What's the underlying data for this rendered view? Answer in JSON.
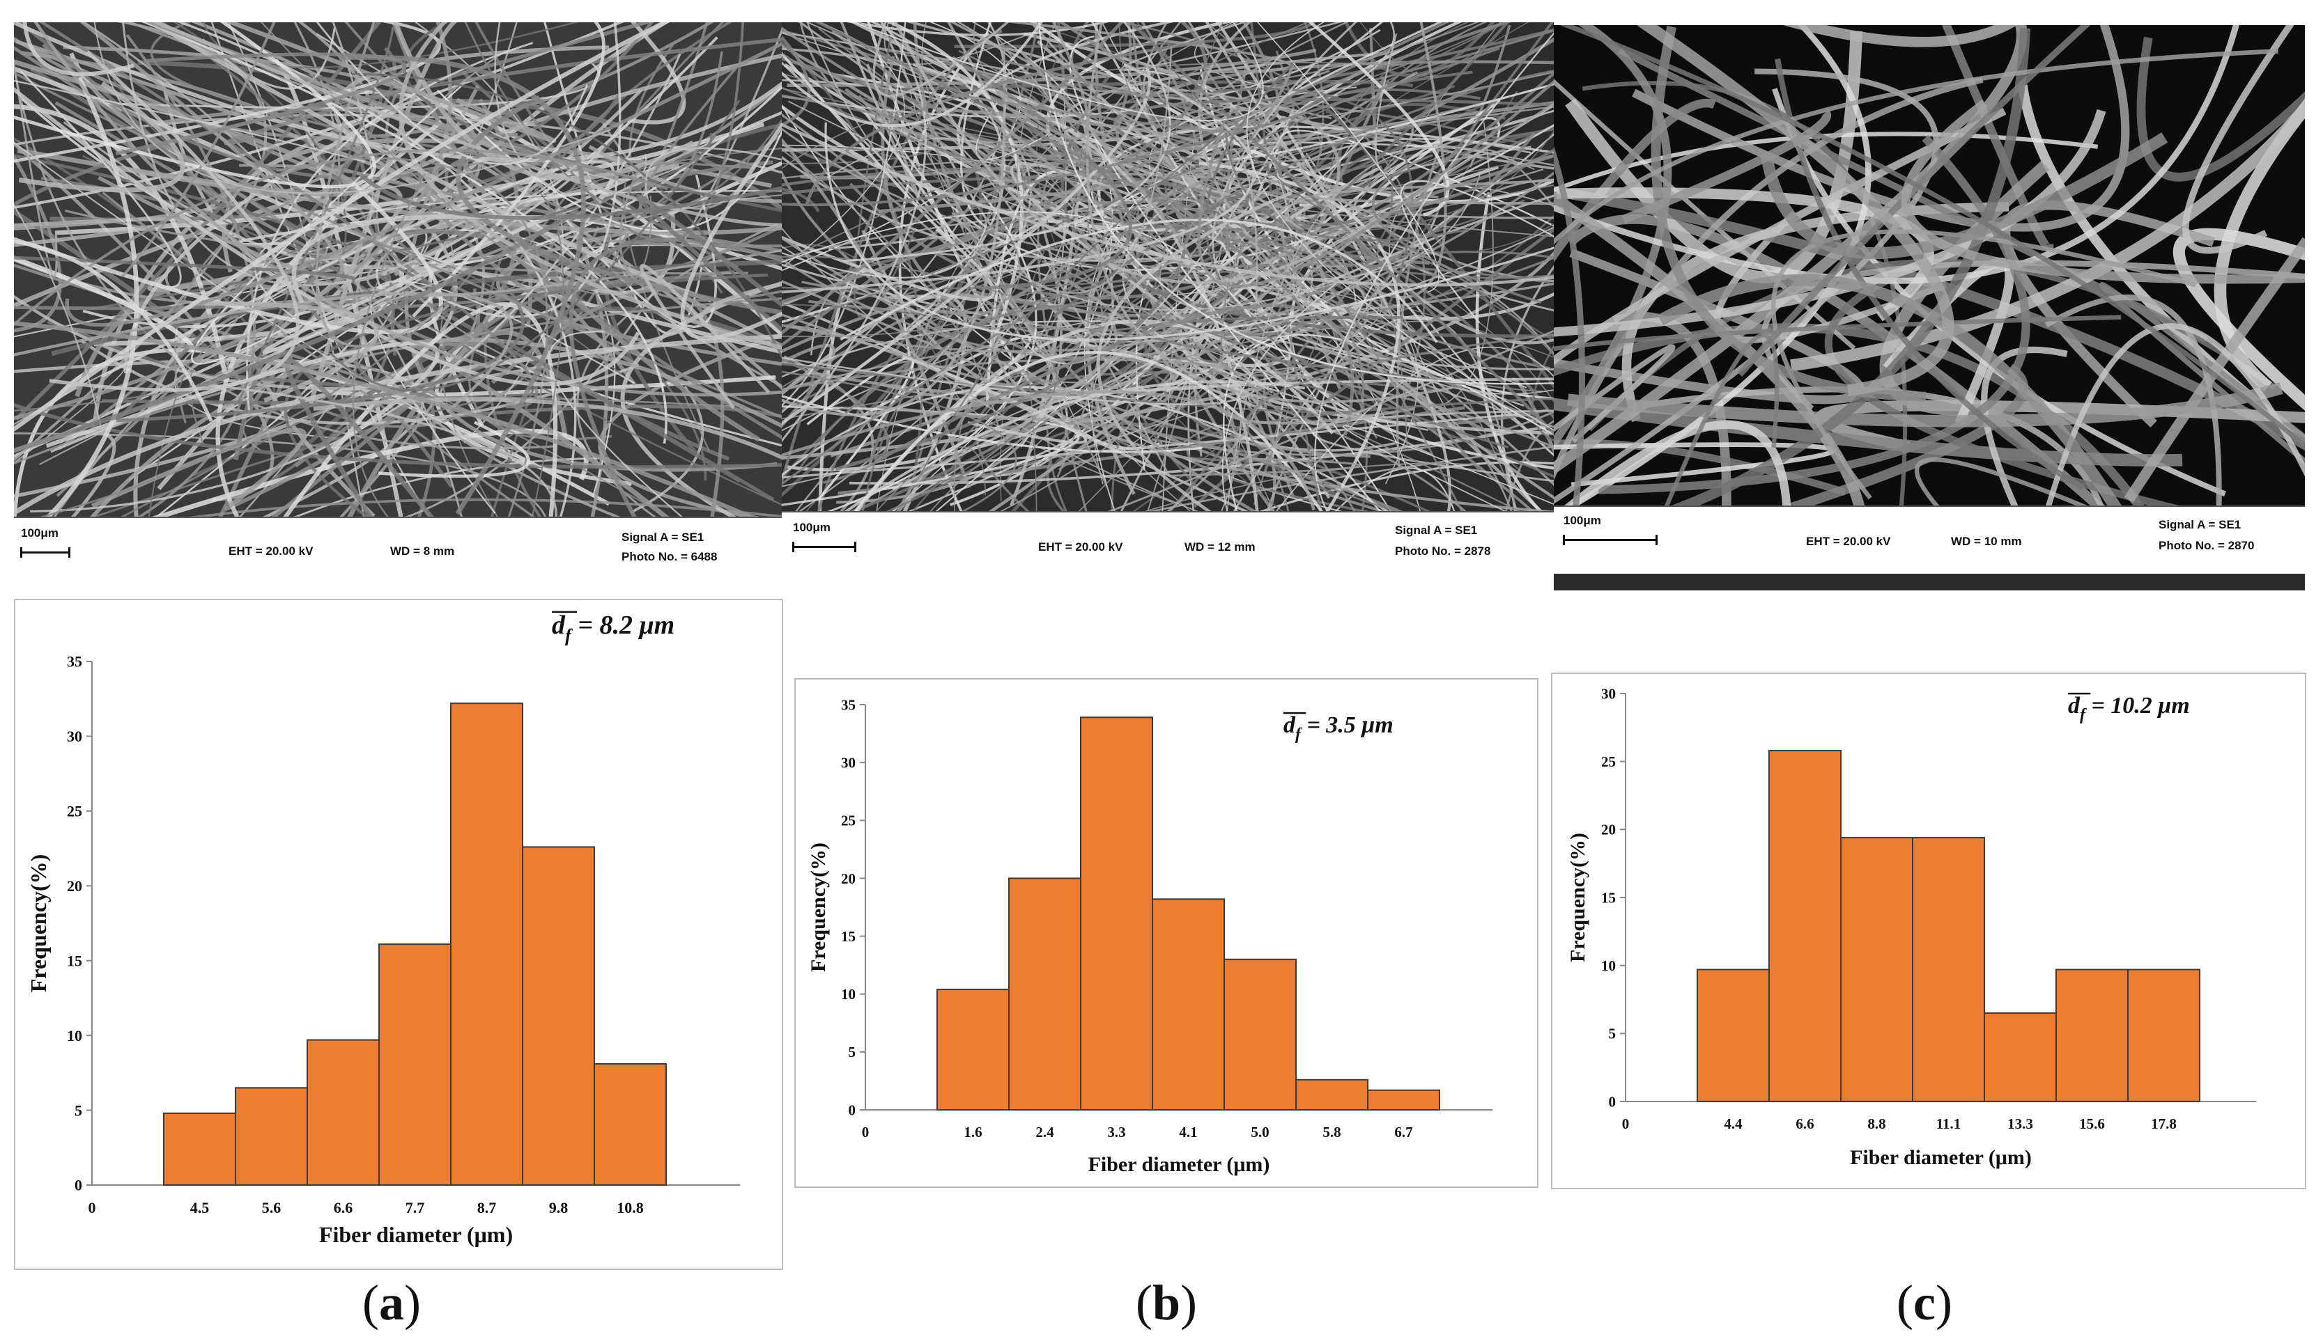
{
  "sem_images": [
    {
      "scale": "100μm",
      "eht": "EHT = 20.00 kV",
      "wd": "WD =   8 mm",
      "signal": "Signal A = SE1",
      "photo": "Photo No. = 6488"
    },
    {
      "scale": "100μm",
      "eht": "EHT = 20.00 kV",
      "wd": "WD =  12 mm",
      "signal": "Signal A = SE1",
      "photo": "Photo No. = 2878"
    },
    {
      "scale": "100μm",
      "eht": "EHT = 20.00 kV",
      "wd": "WD =   10 mm",
      "signal": "Signal A = SE1",
      "photo": "Photo No. = 2870"
    }
  ],
  "panel_labels": [
    {
      "open": "(",
      "letter": "a",
      "close": ")"
    },
    {
      "open": "(",
      "letter": "b",
      "close": ")"
    },
    {
      "open": "(",
      "letter": "c",
      "close": ")"
    }
  ],
  "colors": {
    "bar": "#ed7d31",
    "bar_edge": "#3a3a3a",
    "axis": "#888888"
  },
  "chart_data": [
    {
      "type": "bar",
      "title": "",
      "mean_label": {
        "symbol": "d",
        "subscript": "f",
        "text": " = 8.2 μm"
      },
      "xlabel": "Fiber diameter (μm)",
      "ylabel": "Frequency(%)",
      "ylim": [
        0,
        35
      ],
      "yticks": [
        0,
        5,
        10,
        15,
        20,
        25,
        30,
        35
      ],
      "origin_label": "0",
      "categories": [
        "4.5",
        "5.6",
        "6.6",
        "7.7",
        "8.7",
        "9.8",
        "10.8"
      ],
      "values": [
        4.8,
        6.5,
        9.7,
        16.1,
        32.2,
        22.6,
        8.1
      ],
      "empty_leading_slots": 1
    },
    {
      "type": "bar",
      "title": "",
      "mean_label": {
        "symbol": "d",
        "subscript": "f",
        "text": " = 3.5 μm"
      },
      "xlabel": "Fiber diameter (μm)",
      "ylabel": "Frequency(%)",
      "ylim": [
        0,
        35
      ],
      "yticks": [
        0,
        5,
        10,
        15,
        20,
        25,
        30,
        35
      ],
      "origin_label": "0",
      "categories": [
        "1.6",
        "2.4",
        "3.3",
        "4.1",
        "5.0",
        "5.8",
        "6.7"
      ],
      "values": [
        10.4,
        20.0,
        33.9,
        18.2,
        13.0,
        2.6,
        1.7
      ],
      "empty_leading_slots": 1
    },
    {
      "type": "bar",
      "title": "",
      "mean_label": {
        "symbol": "d",
        "subscript": "f",
        "text": " = 10.2 μm"
      },
      "xlabel": "Fiber diameter (μm)",
      "ylabel": "Frequency(%)",
      "ylim": [
        0,
        30
      ],
      "yticks": [
        0,
        5,
        10,
        15,
        20,
        25,
        30
      ],
      "origin_label": "0",
      "categories": [
        "4.4",
        "6.6",
        "8.8",
        "11.1",
        "13.3",
        "15.6",
        "17.8"
      ],
      "values": [
        9.7,
        25.8,
        19.4,
        19.4,
        6.5,
        9.7,
        9.7
      ],
      "empty_leading_slots": 1
    }
  ]
}
